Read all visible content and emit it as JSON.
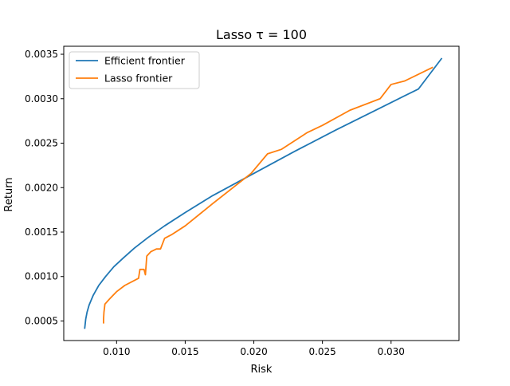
{
  "chart_data": {
    "type": "line",
    "title": "Lasso τ = 100",
    "xlabel": "Risk",
    "ylabel": "Return",
    "xlim": [
      0.00615,
      0.03495
    ],
    "ylim": [
      0.00028,
      0.00359
    ],
    "xticks": [
      0.01,
      0.015,
      0.02,
      0.025,
      0.03
    ],
    "xtick_labels": [
      "0.010",
      "0.015",
      "0.020",
      "0.025",
      "0.030"
    ],
    "yticks": [
      0.0005,
      0.001,
      0.0015,
      0.002,
      0.0025,
      0.003,
      0.0035
    ],
    "ytick_labels": [
      "0.0005",
      "0.0010",
      "0.0015",
      "0.0020",
      "0.0025",
      "0.0030",
      "0.0035"
    ],
    "grid": false,
    "legend_position": "top-left",
    "series": [
      {
        "name": "Efficient frontier",
        "color": "#1f77b4",
        "x": [
          0.00768,
          0.00775,
          0.00785,
          0.008,
          0.0083,
          0.0087,
          0.0092,
          0.0098,
          0.0105,
          0.0113,
          0.0123,
          0.0135,
          0.015,
          0.017,
          0.02,
          0.023,
          0.026,
          0.029,
          0.032,
          0.03367
        ],
        "y": [
          0.00042,
          0.00052,
          0.0006,
          0.00068,
          0.00079,
          0.0009,
          0.001,
          0.00111,
          0.00121,
          0.00132,
          0.00144,
          0.00157,
          0.00172,
          0.00191,
          0.00216,
          0.00241,
          0.00265,
          0.00288,
          0.00311,
          0.00345
        ]
      },
      {
        "name": "Lasso frontier",
        "color": "#ff7f0e",
        "x": [
          0.00905,
          0.00905,
          0.00908,
          0.00912,
          0.00915,
          0.0095,
          0.01,
          0.0106,
          0.0116,
          0.0117,
          0.012,
          0.0121,
          0.0122,
          0.0125,
          0.0129,
          0.0132,
          0.0135,
          0.014,
          0.015,
          0.017,
          0.0198,
          0.021,
          0.022,
          0.0239,
          0.025,
          0.027,
          0.0292,
          0.03,
          0.031,
          0.033
        ],
        "y": [
          0.00048,
          0.00052,
          0.0006,
          0.00065,
          0.00069,
          0.00075,
          0.00083,
          0.0009,
          0.00098,
          0.00108,
          0.00108,
          0.00102,
          0.00123,
          0.00128,
          0.00131,
          0.00131,
          0.00143,
          0.00147,
          0.00157,
          0.00182,
          0.00216,
          0.00238,
          0.00243,
          0.00262,
          0.0027,
          0.00287,
          0.003,
          0.00316,
          0.0032,
          0.00335
        ]
      }
    ]
  }
}
